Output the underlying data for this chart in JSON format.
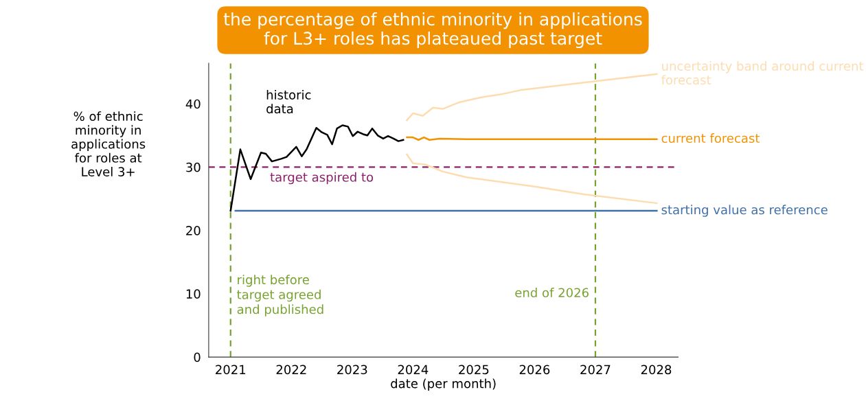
{
  "chart_data": {
    "type": "line",
    "title": "the percentage of ethnic minority in applications\nfor L3+ roles has plateaued past target",
    "xlabel": "date (per month)",
    "ylabel": "% of ethnic\nminority in\napplications\nfor roles at\nLevel 3+",
    "xlim": [
      2020.64,
      2028.36
    ],
    "xticks": [
      2021,
      2022,
      2023,
      2024,
      2025,
      2026,
      2027,
      2028
    ],
    "ylim": [
      0,
      46.4
    ],
    "yticks": [
      0,
      10,
      20,
      30,
      40
    ],
    "grid": false,
    "legend": false,
    "marker": "none",
    "series": [
      {
        "name": "historic data",
        "color": "#000000",
        "x": [
          2021.0,
          2021.16,
          2021.33,
          2021.5,
          2021.58,
          2021.68,
          2021.83,
          2021.92,
          2022.08,
          2022.17,
          2022.25,
          2022.41,
          2022.5,
          2022.59,
          2022.67,
          2022.75,
          2022.84,
          2022.93,
          2023.01,
          2023.09,
          2023.18,
          2023.25,
          2023.33,
          2023.42,
          2023.51,
          2023.59,
          2023.68,
          2023.76,
          2023.84
        ],
        "values": [
          23.1,
          32.8,
          28.1,
          32.3,
          32.1,
          30.9,
          31.3,
          31.6,
          33.2,
          31.7,
          32.8,
          36.2,
          35.5,
          35.1,
          33.6,
          36.1,
          36.6,
          36.4,
          34.9,
          35.6,
          35.2,
          35.0,
          36.1,
          35.0,
          34.5,
          34.9,
          34.5,
          34.1,
          34.3
        ]
      },
      {
        "name": "uncertainty band around current forecast",
        "color": "#fddcb0",
        "x": [
          2023.9,
          2024.0,
          2024.16,
          2024.33,
          2024.49,
          2024.75,
          2025.11,
          2025.45,
          2025.79,
          2026.24,
          2027.03,
          2028.01
        ],
        "values": [
          37.4,
          38.5,
          38.1,
          39.4,
          39.2,
          40.2,
          41.0,
          41.5,
          42.2,
          42.7,
          43.6,
          44.7
        ]
      },
      {
        "color": "#fddcb0",
        "x": [
          2023.9,
          2024.0,
          2024.21,
          2024.49,
          2024.88,
          2025.34,
          2026.02,
          2026.81,
          2028.01
        ],
        "values": [
          32.0,
          30.6,
          30.4,
          29.3,
          28.4,
          27.8,
          26.9,
          25.7,
          24.3
        ]
      },
      {
        "name": "current forecast",
        "color": "#f39200",
        "x": [
          2023.9,
          2024.0,
          2024.09,
          2024.18,
          2024.27,
          2024.44,
          2024.89,
          2028.01
        ],
        "values": [
          34.7,
          34.7,
          34.3,
          34.7,
          34.3,
          34.5,
          34.4,
          34.4
        ]
      },
      {
        "name": "starting value as reference",
        "color": "#3f6fa7",
        "x": [
          2021.08,
          2028.01
        ],
        "values": [
          23.1,
          23.1
        ]
      }
    ],
    "ref_lines": [
      {
        "axis": "y",
        "value": 30,
        "label": "target aspired to",
        "color": "#8b1f6a",
        "line_style": "dashed"
      },
      {
        "axis": "x",
        "value": 2021,
        "label": "right before\ntarget agreed\nand published",
        "color": "#78a22f",
        "line_style": "dashed"
      },
      {
        "axis": "x",
        "value": 2027,
        "label": "end of 2026",
        "color": "#78a22f",
        "line_style": "dashed"
      }
    ]
  }
}
